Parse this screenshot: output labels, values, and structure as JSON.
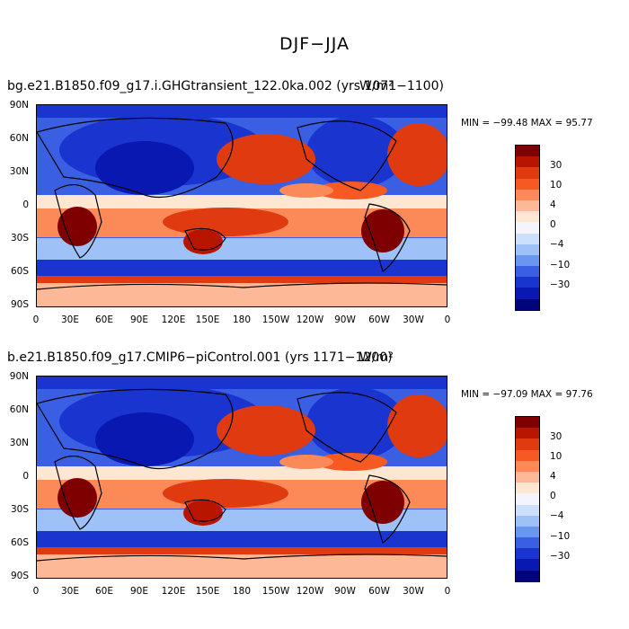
{
  "figure_title": "DJF−JJA",
  "panels": [
    {
      "case_name": "bg.e21.B1850.f09_g17.i.GHGtransient_122.0ka.002 (yrs 1071−1100)",
      "units": "W/m²",
      "min_max_text": "MIN = −99.48 MAX =  95.77"
    },
    {
      "case_name": "b.e21.B1850.f09_g17.CMIP6−piControl.001 (yrs 1171−1200)",
      "units": "W/m²",
      "min_max_text": "MIN = −97.09 MAX =  97.76"
    }
  ],
  "axes": {
    "lat_labels": [
      "90N",
      "60N",
      "30N",
      "0",
      "30S",
      "60S",
      "90S"
    ],
    "lon_labels": [
      "0",
      "30E",
      "60E",
      "90E",
      "120E",
      "150E",
      "180",
      "150W",
      "120W",
      "90W",
      "60W",
      "30W",
      "0"
    ]
  },
  "colorbar": {
    "colors": [
      "#7f0000",
      "#b81500",
      "#e03a10",
      "#f65a22",
      "#fb8a58",
      "#fdb898",
      "#fde6d2",
      "#f4f4ff",
      "#cde0fb",
      "#9ec2f7",
      "#6896f0",
      "#3a5fe2",
      "#1a34d0",
      "#0818b0",
      "#00047a"
    ],
    "labels": [
      "30",
      "10",
      "4",
      "0",
      "−4",
      "−10",
      "−30"
    ]
  }
}
